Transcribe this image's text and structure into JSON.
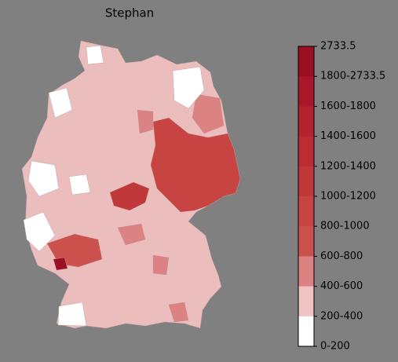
{
  "title": "Stephan",
  "colorbar": {
    "labels": [
      "2733.5",
      "1800-2733.5",
      "1600-1800",
      "1400-1600",
      "1200-1400",
      "1000-1200",
      "800-1000",
      "600-800",
      "400-600",
      "200-400",
      "0-200"
    ],
    "colors": [
      "#9b0f22",
      "#a8182a",
      "#b3222f",
      "#bb2c34",
      "#c1383b",
      "#c74443",
      "#cc504c",
      "#dc8282",
      "#efc3c3",
      "#ffffff"
    ]
  }
}
